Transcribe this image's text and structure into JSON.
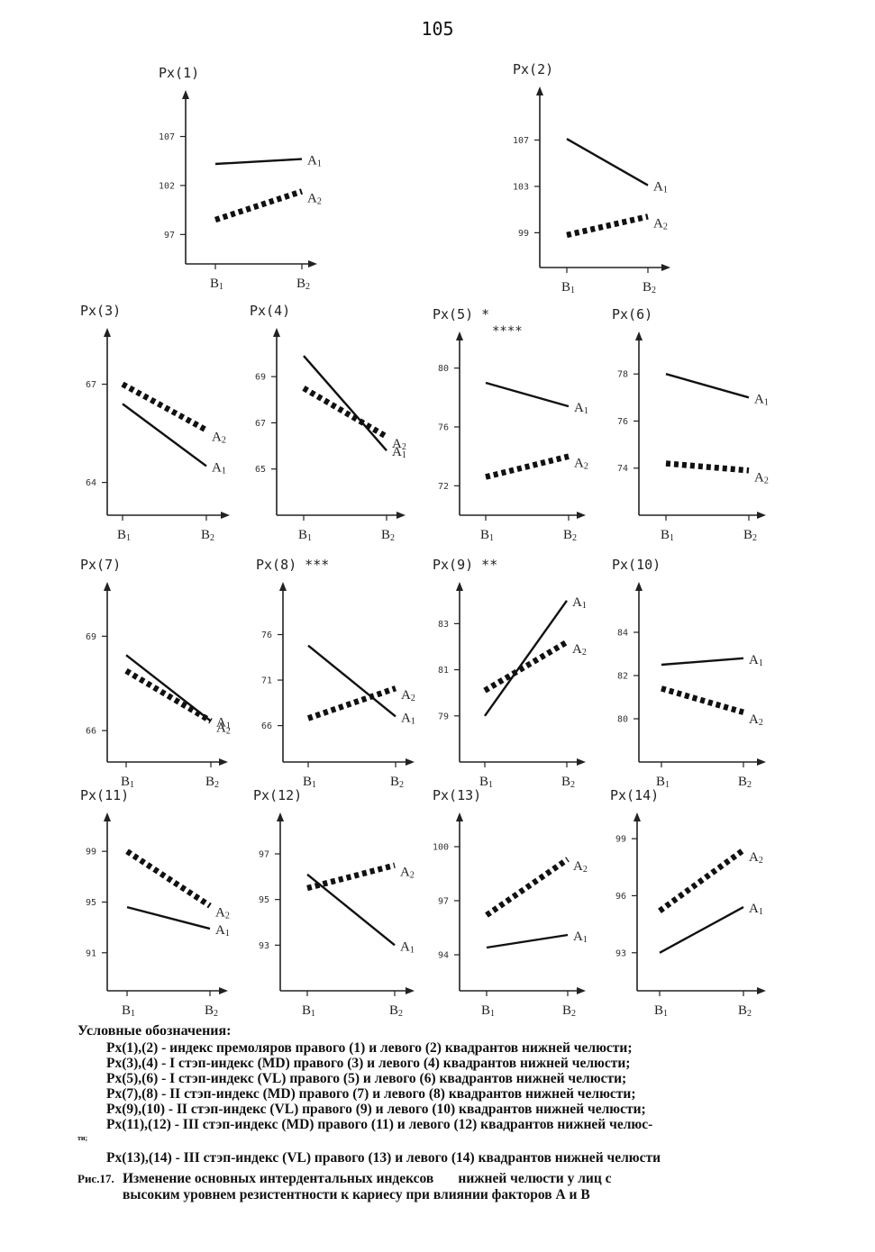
{
  "page_number": "105",
  "chart_data": [
    {
      "type": "line",
      "title": "Px(1)",
      "categories": [
        "B1",
        "B2"
      ],
      "ylim": [
        94,
        111
      ],
      "yticks": [
        97,
        102,
        107
      ],
      "series": [
        {
          "name": "A1",
          "style": "solid",
          "values": [
            104.2,
            104.7
          ]
        },
        {
          "name": "A2",
          "style": "dotted",
          "values": [
            98.5,
            101.4
          ]
        }
      ]
    },
    {
      "type": "line",
      "title": "Px(2)",
      "categories": [
        "B1",
        "B2"
      ],
      "ylim": [
        96,
        111
      ],
      "yticks": [
        99,
        103,
        107
      ],
      "series": [
        {
          "name": "A1",
          "style": "solid",
          "values": [
            107.1,
            103.1
          ]
        },
        {
          "name": "A2",
          "style": "dotted",
          "values": [
            98.8,
            100.4
          ]
        }
      ]
    },
    {
      "type": "line",
      "title": "Px(3)",
      "categories": [
        "B1",
        "B2"
      ],
      "ylim": [
        63,
        68.5
      ],
      "yticks": [
        64,
        67
      ],
      "series": [
        {
          "name": "A1",
          "style": "solid",
          "values": [
            66.4,
            64.5
          ]
        },
        {
          "name": "A2",
          "style": "dotted",
          "values": [
            67,
            65.6
          ]
        }
      ]
    },
    {
      "type": "line",
      "title": "Px(4)",
      "categories": [
        "B1",
        "B2"
      ],
      "ylim": [
        63,
        70.8
      ],
      "yticks": [
        65,
        67,
        69
      ],
      "series": [
        {
          "name": "A1",
          "style": "solid",
          "values": [
            69.9,
            65.8
          ]
        },
        {
          "name": "A2",
          "style": "dotted",
          "values": [
            68.5,
            66.4
          ]
        }
      ]
    },
    {
      "type": "line",
      "title": "Px(5)",
      "title_note": "*\n****",
      "categories": [
        "B1",
        "B2"
      ],
      "ylim": [
        70,
        82
      ],
      "yticks": [
        72,
        76,
        80
      ],
      "series": [
        {
          "name": "A1",
          "style": "solid",
          "values": [
            79,
            77.4
          ]
        },
        {
          "name": "A2",
          "style": "dotted",
          "values": [
            72.6,
            74
          ]
        }
      ]
    },
    {
      "type": "line",
      "title": "Px(6)",
      "categories": [
        "B1",
        "B2"
      ],
      "ylim": [
        72,
        79.5
      ],
      "yticks": [
        74,
        76,
        78
      ],
      "series": [
        {
          "name": "A1",
          "style": "solid",
          "values": [
            78,
            77
          ]
        },
        {
          "name": "A2",
          "style": "dotted",
          "values": [
            74.2,
            73.9
          ]
        }
      ]
    },
    {
      "type": "line",
      "title": "Px(7)",
      "categories": [
        "B1",
        "B2"
      ],
      "ylim": [
        65,
        70.5
      ],
      "yticks": [
        66,
        69
      ],
      "series": [
        {
          "name": "A1",
          "style": "solid",
          "values": [
            68.4,
            66.3
          ]
        },
        {
          "name": "A2",
          "style": "dotted",
          "values": [
            67.9,
            66.3
          ]
        }
      ]
    },
    {
      "type": "line",
      "title": "Px(8)",
      "title_note": "***",
      "categories": [
        "B1",
        "B2"
      ],
      "ylim": [
        62,
        81
      ],
      "yticks": [
        66,
        71,
        76
      ],
      "series": [
        {
          "name": "A1",
          "style": "solid",
          "values": [
            74.8,
            67
          ]
        },
        {
          "name": "A2",
          "style": "dotted",
          "values": [
            66.8,
            70.1
          ]
        }
      ]
    },
    {
      "type": "line",
      "title": "Px(9)",
      "title_note": "**",
      "categories": [
        "B1",
        "B2"
      ],
      "ylim": [
        77,
        84.5
      ],
      "yticks": [
        79,
        81,
        83
      ],
      "series": [
        {
          "name": "A1",
          "style": "solid",
          "values": [
            79,
            84
          ]
        },
        {
          "name": "A2",
          "style": "dotted",
          "values": [
            80.1,
            82.2
          ]
        }
      ]
    },
    {
      "type": "line",
      "title": "Px(10)",
      "categories": [
        "B1",
        "B2"
      ],
      "ylim": [
        78,
        86
      ],
      "yticks": [
        80,
        82,
        84
      ],
      "series": [
        {
          "name": "A1",
          "style": "solid",
          "values": [
            82.5,
            82.8
          ]
        },
        {
          "name": "A2",
          "style": "dotted",
          "values": [
            81.4,
            80.3
          ]
        }
      ]
    },
    {
      "type": "line",
      "title": "Px(11)",
      "categories": [
        "B1",
        "B2"
      ],
      "ylim": [
        88,
        101.5
      ],
      "yticks": [
        91,
        95,
        99
      ],
      "series": [
        {
          "name": "A1",
          "style": "solid",
          "values": [
            94.6,
            92.9
          ]
        },
        {
          "name": "A2",
          "style": "dotted",
          "values": [
            99,
            94.7
          ]
        }
      ]
    },
    {
      "type": "line",
      "title": "Px(12)",
      "categories": [
        "B1",
        "B2"
      ],
      "ylim": [
        91,
        98.5
      ],
      "yticks": [
        93,
        95,
        97
      ],
      "series": [
        {
          "name": "A1",
          "style": "solid",
          "values": [
            96.1,
            93
          ]
        },
        {
          "name": "A2",
          "style": "dotted",
          "values": [
            95.5,
            96.5
          ]
        }
      ]
    },
    {
      "type": "line",
      "title": "Px(13)",
      "categories": [
        "B1",
        "B2"
      ],
      "ylim": [
        92,
        101.5
      ],
      "yticks": [
        94,
        97,
        100
      ],
      "series": [
        {
          "name": "A1",
          "style": "solid",
          "values": [
            94.4,
            95.1
          ]
        },
        {
          "name": "A2",
          "style": "dotted",
          "values": [
            96.2,
            99.3
          ]
        }
      ]
    },
    {
      "type": "line",
      "title": "Px(14)",
      "categories": [
        "B1",
        "B2"
      ],
      "ylim": [
        91,
        100
      ],
      "yticks": [
        93,
        96,
        99
      ],
      "series": [
        {
          "name": "A1",
          "style": "solid",
          "values": [
            93,
            95.4
          ]
        },
        {
          "name": "A2",
          "style": "dotted",
          "values": [
            95.2,
            98.4
          ]
        }
      ]
    }
  ],
  "legend": {
    "title": "Условные обозначения:",
    "lines": [
      "Px(1),(2)  -  индекс премоляров правого (1) и левого (2) квадрантов нижней челюсти;",
      "Px(3),(4)  -  I стэп-индекс (MD) правого (3) и левого (4) квадрантов нижней челюсти;",
      "Px(5),(6)  -  I стэп-индекс (VL) правого (5) и левого (6) квадрантов нижней челюсти;",
      "Px(7),(8)  -  II стэп-индекс (MD) правого (7) и левого (8) квадрантов нижней челюсти;",
      "Px(9),(10)  -  II стэп-индекс (VL) правого (9) и левого (10) квадрантов нижней челюсти;",
      "Px(11),(12)  -  III стэп-индекс (MD) правого (11) и левого (12) квадрантов нижней челюс-"
    ],
    "fragment": "ти;",
    "last_line": "Px(13),(14)  -  III стэп-индекс (VL) правого (13) и левого (14) квадрантов нижней челюсти"
  },
  "caption": {
    "label": "Рис.17.",
    "line1": "Изменение основных интердентальных индексов       нижней челюсти у лиц с",
    "line2": "высоким уровнем резистентности к кариесу при влиянии факторов А и В"
  }
}
